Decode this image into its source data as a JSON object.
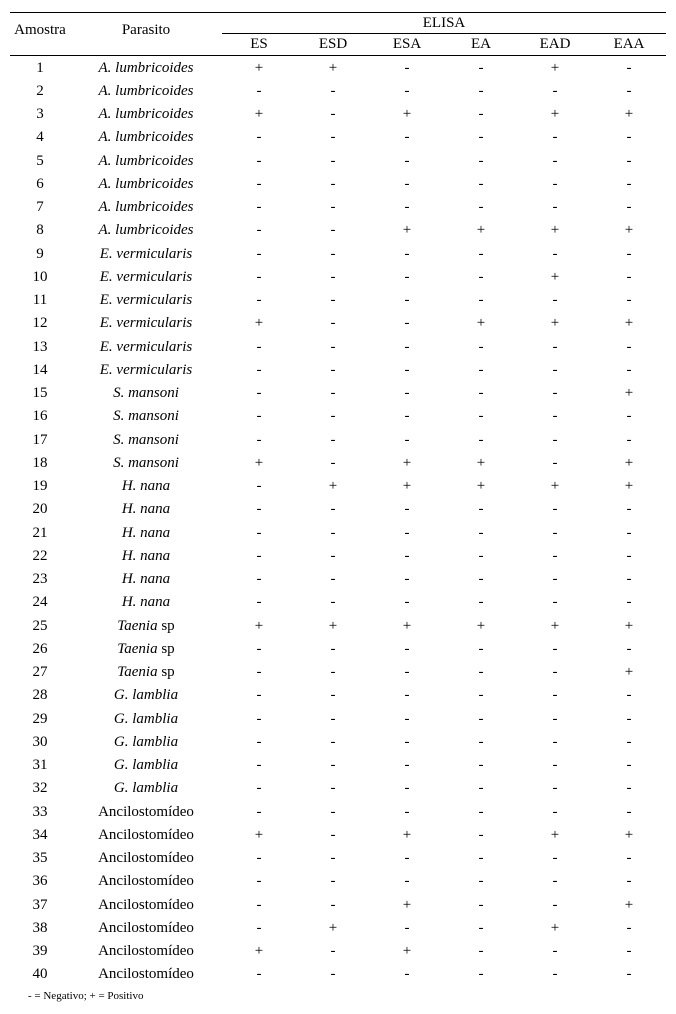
{
  "headers": {
    "amostra": "Amostra",
    "parasito": "Parasito",
    "elisa": "ELISA",
    "sub": [
      "ES",
      "ESD",
      "ESA",
      "EA",
      "EAD",
      "EAA"
    ]
  },
  "footnote": "- = Negativo; + = Positivo",
  "species": {
    "alum": "A. lumbricoides",
    "everm": "E. vermicularis",
    "smans": "S. mansoni",
    "hnana": "H. nana",
    "taenia_italic": "Taenia",
    "taenia_sp": " sp",
    "glamb": "G. lamblia",
    "ancil": "Ancilostomídeo"
  },
  "rows": [
    {
      "n": "1",
      "sp": "alum",
      "v": [
        "+",
        "+",
        "-",
        "-",
        "+",
        "-"
      ]
    },
    {
      "n": "2",
      "sp": "alum",
      "v": [
        "-",
        "-",
        "-",
        "-",
        "-",
        "-"
      ]
    },
    {
      "n": "3",
      "sp": "alum",
      "v": [
        "+",
        "-",
        "+",
        "-",
        "+",
        "+"
      ]
    },
    {
      "n": "4",
      "sp": "alum",
      "v": [
        "-",
        "-",
        "-",
        "-",
        "-",
        "-"
      ]
    },
    {
      "n": "5",
      "sp": "alum",
      "v": [
        "-",
        "-",
        "-",
        "-",
        "-",
        "-"
      ]
    },
    {
      "n": "6",
      "sp": "alum",
      "v": [
        "-",
        "-",
        "-",
        "-",
        "-",
        "-"
      ]
    },
    {
      "n": "7",
      "sp": "alum",
      "v": [
        "-",
        "-",
        "-",
        "-",
        "-",
        "-"
      ]
    },
    {
      "n": "8",
      "sp": "alum",
      "v": [
        "-",
        "-",
        "+",
        "+",
        "+",
        "+"
      ]
    },
    {
      "n": "9",
      "sp": "everm",
      "v": [
        "-",
        "-",
        "-",
        "-",
        "-",
        "-"
      ]
    },
    {
      "n": "10",
      "sp": "everm",
      "v": [
        "-",
        "-",
        "-",
        "-",
        "+",
        "-"
      ]
    },
    {
      "n": "11",
      "sp": "everm",
      "v": [
        "-",
        "-",
        "-",
        "-",
        "-",
        "-"
      ]
    },
    {
      "n": "12",
      "sp": "everm",
      "v": [
        "+",
        "-",
        "-",
        "+",
        "+",
        "+"
      ]
    },
    {
      "n": "13",
      "sp": "everm",
      "v": [
        "-",
        "-",
        "-",
        "-",
        "-",
        "-"
      ]
    },
    {
      "n": "14",
      "sp": "everm",
      "v": [
        "-",
        "-",
        "-",
        "-",
        "-",
        "-"
      ]
    },
    {
      "n": "15",
      "sp": "smans",
      "v": [
        "-",
        "-",
        "-",
        "-",
        "-",
        "+"
      ]
    },
    {
      "n": "16",
      "sp": "smans",
      "v": [
        "-",
        "-",
        "-",
        "-",
        "-",
        "-"
      ]
    },
    {
      "n": "17",
      "sp": "smans",
      "v": [
        "-",
        "-",
        "-",
        "-",
        "-",
        "-"
      ]
    },
    {
      "n": "18",
      "sp": "smans",
      "v": [
        "+",
        "-",
        "+",
        "+",
        "-",
        "+"
      ]
    },
    {
      "n": "19",
      "sp": "hnana",
      "v": [
        "-",
        "+",
        "+",
        "+",
        "+",
        "+"
      ]
    },
    {
      "n": "20",
      "sp": "hnana",
      "v": [
        "-",
        "-",
        "-",
        "-",
        "-",
        "-"
      ]
    },
    {
      "n": "21",
      "sp": "hnana",
      "v": [
        "-",
        "-",
        "-",
        "-",
        "-",
        "-"
      ]
    },
    {
      "n": "22",
      "sp": "hnana",
      "v": [
        "-",
        "-",
        "-",
        "-",
        "-",
        "-"
      ]
    },
    {
      "n": "23",
      "sp": "hnana",
      "v": [
        "-",
        "-",
        "-",
        "-",
        "-",
        "-"
      ]
    },
    {
      "n": "24",
      "sp": "hnana",
      "v": [
        "-",
        "-",
        "-",
        "-",
        "-",
        "-"
      ]
    },
    {
      "n": "25",
      "sp": "taenia",
      "v": [
        "+",
        "+",
        "+",
        "+",
        "+",
        "+"
      ]
    },
    {
      "n": "26",
      "sp": "taenia",
      "v": [
        "-",
        "-",
        "-",
        "-",
        "-",
        "-"
      ]
    },
    {
      "n": "27",
      "sp": "taenia",
      "v": [
        "-",
        "-",
        "-",
        "-",
        "-",
        "+"
      ]
    },
    {
      "n": "28",
      "sp": "glamb",
      "v": [
        "-",
        "-",
        "-",
        "-",
        "-",
        "-"
      ]
    },
    {
      "n": "29",
      "sp": "glamb",
      "v": [
        "-",
        "-",
        "-",
        "-",
        "-",
        "-"
      ]
    },
    {
      "n": "30",
      "sp": "glamb",
      "v": [
        "-",
        "-",
        "-",
        "-",
        "-",
        "-"
      ]
    },
    {
      "n": "31",
      "sp": "glamb",
      "v": [
        "-",
        "-",
        "-",
        "-",
        "-",
        "-"
      ]
    },
    {
      "n": "32",
      "sp": "glamb",
      "v": [
        "-",
        "-",
        "-",
        "-",
        "-",
        "-"
      ]
    },
    {
      "n": "33",
      "sp": "ancil",
      "v": [
        "-",
        "-",
        "-",
        "-",
        "-",
        "-"
      ]
    },
    {
      "n": "34",
      "sp": "ancil",
      "v": [
        "+",
        "-",
        "+",
        "-",
        "+",
        "+"
      ]
    },
    {
      "n": "35",
      "sp": "ancil",
      "v": [
        "-",
        "-",
        "-",
        "-",
        "-",
        "-"
      ]
    },
    {
      "n": "36",
      "sp": "ancil",
      "v": [
        "-",
        "-",
        "-",
        "-",
        "-",
        "-"
      ]
    },
    {
      "n": "37",
      "sp": "ancil",
      "v": [
        "-",
        "-",
        "+",
        "-",
        "-",
        "+"
      ]
    },
    {
      "n": "38",
      "sp": "ancil",
      "v": [
        "-",
        "+",
        "-",
        "-",
        "+",
        "-"
      ]
    },
    {
      "n": "39",
      "sp": "ancil",
      "v": [
        "+",
        "-",
        "+",
        "-",
        "-",
        "-"
      ]
    },
    {
      "n": "40",
      "sp": "ancil",
      "v": [
        "-",
        "-",
        "-",
        "-",
        "-",
        "-"
      ]
    }
  ],
  "style": {
    "font_family": "Times New Roman",
    "font_size_body": 15,
    "font_size_footnote": 11,
    "text_color": "#000000",
    "background_color": "#ffffff",
    "border_color": "#000000",
    "col_widths": {
      "amostra": 60,
      "parasito": 152,
      "elisa": 74
    }
  }
}
